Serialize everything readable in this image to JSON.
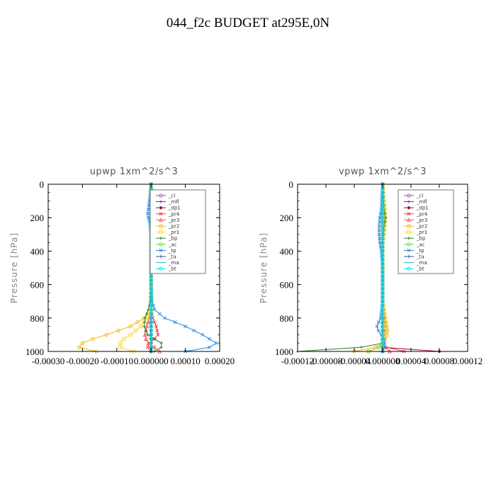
{
  "figure": {
    "title": "044_f2c  BUDGET at295E,0N"
  },
  "legend_colors": {
    "_cl": "#9b59b6",
    "_mfl": "#7b1fa2",
    "_dp1": "#b0003a",
    "_pr4": "#e53935",
    "_pr3": "#ff5252",
    "_pr2": "#ffb300",
    "_pr1": "#fdd835",
    "_bp": "#2e7d32",
    "_ac": "#66dd44",
    "_tp": "#1e88e5",
    "_ta": "#3949ab",
    "_ma": "#26c6da",
    "_bt": "#00e5ee"
  },
  "chart_data": [
    {
      "type": "line",
      "title": "upwp   1xm^2/s^3",
      "xlabel": "",
      "ylabel": "Pressure [hPa]",
      "xlim": [
        -0.0003,
        0.0002
      ],
      "ylim": [
        1000,
        0
      ],
      "xticks": [
        "-0.00030",
        "-0.00020",
        "-0.00010",
        "0.000000",
        "0.00010",
        "0.00020"
      ],
      "yticks": [
        "0",
        "200",
        "400",
        "600",
        "800",
        "1000"
      ],
      "legend": [
        "_cl",
        "_mfl",
        "_dp1",
        "_pr4",
        "_pr3",
        "_pr2",
        "_pr1",
        "_bp",
        "_ac",
        "_tp",
        "_ta",
        "_ma",
        "_bt"
      ],
      "legend_position": "top-right",
      "y": [
        0,
        150,
        175,
        200,
        225,
        300,
        400,
        500,
        600,
        700,
        750,
        800,
        850,
        900,
        925,
        950,
        975,
        1000
      ],
      "series": [
        {
          "name": "_cl",
          "values": [
            0,
            0,
            0,
            0,
            0,
            0,
            0,
            0,
            0,
            0,
            0,
            0,
            0,
            0,
            0,
            0,
            0,
            0
          ]
        },
        {
          "name": "_mfl",
          "values": [
            0,
            0,
            0,
            0,
            0,
            0,
            0,
            0,
            0,
            0,
            0,
            0,
            0,
            0,
            0,
            0,
            0,
            0
          ]
        },
        {
          "name": "_dp1",
          "values": [
            0,
            0,
            0,
            0,
            0,
            0,
            0,
            0,
            0,
            0,
            0,
            0,
            0,
            0,
            0,
            0,
            0,
            0
          ]
        },
        {
          "name": "_pr4",
          "values": [
            0,
            0,
            0,
            0,
            0,
            0,
            0,
            0,
            0,
            0,
            0,
            5e-06,
            1.5e-05,
            2e-05,
            1e-05,
            -5e-06,
            -1e-05,
            0
          ]
        },
        {
          "name": "_pr3",
          "values": [
            0,
            0,
            0,
            0,
            0,
            0,
            0,
            0,
            0,
            0,
            0,
            -5e-06,
            -1.2e-05,
            -1.8e-05,
            -1.5e-05,
            -8e-06,
            1e-05,
            2.5e-05
          ]
        },
        {
          "name": "_pr2",
          "values": [
            0,
            0,
            0,
            0,
            0,
            0,
            0,
            0,
            0,
            0,
            0,
            -2e-05,
            -6e-05,
            -0.00013,
            -0.00017,
            -0.0002,
            -0.00021,
            -0.00016
          ]
        },
        {
          "name": "_pr1",
          "values": [
            0,
            5e-06,
            8e-06,
            6e-06,
            4e-06,
            0,
            0,
            0,
            0,
            0,
            0,
            -1e-05,
            -3e-05,
            -6e-05,
            -8e-05,
            -9e-05,
            -9e-05,
            -5e-05
          ]
        },
        {
          "name": "_bp",
          "values": [
            0,
            5e-06,
            6e-06,
            4e-06,
            3e-06,
            0,
            0,
            0,
            0,
            -3e-06,
            -8e-06,
            -1.8e-05,
            -2e-05,
            -1e-05,
            1e-05,
            3e-05,
            3e-05,
            1e-05
          ]
        },
        {
          "name": "_ac",
          "values": [
            0,
            0,
            0,
            0,
            0,
            0,
            0,
            0,
            0,
            0,
            0,
            0,
            0,
            0,
            0,
            0,
            0,
            0
          ]
        },
        {
          "name": "_tp",
          "values": [
            0,
            -8e-06,
            -1e-05,
            -8e-06,
            -5e-06,
            0,
            0,
            0,
            0,
            3e-06,
            1e-05,
            4e-05,
            0.0001,
            0.00015,
            0.00017,
            0.00019,
            0.00017,
            0.0001
          ]
        },
        {
          "name": "_ta",
          "values": [
            0,
            0,
            0,
            0,
            0,
            0,
            0,
            0,
            0,
            0,
            0,
            0,
            0,
            0,
            0,
            0,
            0,
            0
          ]
        },
        {
          "name": "_ma",
          "values": [
            0,
            0,
            0,
            0,
            0,
            0,
            0,
            0,
            0,
            0,
            0,
            0,
            0,
            0,
            0,
            0,
            0,
            0
          ]
        },
        {
          "name": "_bt",
          "values": [
            0,
            0,
            0,
            0,
            0,
            0,
            0,
            0,
            0,
            0,
            0,
            0,
            0,
            0,
            0,
            0,
            0,
            0
          ]
        }
      ]
    },
    {
      "type": "line",
      "title": "vpwp   1xm^2/s^3",
      "xlabel": "",
      "ylabel": "Pressure [hPa]",
      "xlim": [
        -0.00012,
        0.00012
      ],
      "ylim": [
        1000,
        0
      ],
      "xticks": [
        "-0.00012",
        "-0.00008",
        "-0.00004",
        "0.000000",
        "0.00004",
        "0.00008",
        "0.00012"
      ],
      "yticks": [
        "0",
        "200",
        "400",
        "600",
        "800",
        "1000"
      ],
      "legend": [
        "_cl",
        "_mfl",
        "_dp1",
        "_pr4",
        "_pr3",
        "_pr2",
        "_pr1",
        "_bp",
        "_ac",
        "_tp",
        "_ta",
        "_ma",
        "_bt"
      ],
      "legend_position": "top-right",
      "y": [
        0,
        150,
        200,
        250,
        300,
        350,
        400,
        500,
        600,
        700,
        800,
        850,
        875,
        900,
        925,
        950,
        975,
        1000
      ],
      "series": [
        {
          "name": "_cl",
          "values": [
            0,
            0,
            0,
            0,
            0,
            0,
            0,
            0,
            0,
            0,
            0,
            0,
            0,
            0,
            0,
            0,
            0,
            0
          ]
        },
        {
          "name": "_mfl",
          "values": [
            0,
            0,
            0,
            0,
            0,
            0,
            0,
            0,
            0,
            0,
            0,
            0,
            0,
            0,
            0,
            0,
            0,
            0
          ]
        },
        {
          "name": "_dp1",
          "values": [
            0,
            0,
            0,
            0,
            0,
            0,
            0,
            0,
            0,
            0,
            0,
            0,
            0,
            0,
            0,
            0,
            0,
            8e-05
          ]
        },
        {
          "name": "_pr4",
          "values": [
            0,
            0,
            0,
            0,
            0,
            0,
            0,
            0,
            0,
            0,
            3e-06,
            4e-06,
            3e-06,
            2e-06,
            0,
            0,
            5e-06,
            3e-05
          ]
        },
        {
          "name": "_pr3",
          "values": [
            0,
            0,
            0,
            0,
            0,
            0,
            0,
            0,
            0,
            0,
            0,
            0,
            0,
            0,
            0,
            0,
            4e-06,
            1e-05
          ]
        },
        {
          "name": "_pr2",
          "values": [
            0,
            3e-06,
            4e-06,
            3e-06,
            2e-06,
            0,
            0,
            0,
            0,
            0,
            4e-06,
            6e-06,
            7e-06,
            6e-06,
            4e-06,
            0,
            -1e-05,
            -4e-05
          ]
        },
        {
          "name": "_pr1",
          "values": [
            0,
            2e-06,
            3e-06,
            2e-06,
            1e-06,
            0,
            0,
            0,
            0,
            0,
            2e-06,
            3e-06,
            4e-06,
            3e-06,
            2e-06,
            0,
            -5e-06,
            -2e-05
          ]
        },
        {
          "name": "_bp",
          "values": [
            0,
            2e-06,
            4e-06,
            2e-06,
            1e-06,
            0,
            0,
            0,
            0,
            0,
            0,
            0,
            0,
            0,
            0,
            0,
            -3e-05,
            -0.00012
          ]
        },
        {
          "name": "_ac",
          "values": [
            0,
            0,
            0,
            0,
            0,
            0,
            0,
            0,
            0,
            0,
            0,
            0,
            0,
            0,
            0,
            0,
            -5e-06,
            -2e-05
          ]
        },
        {
          "name": "_tp",
          "values": [
            0,
            -2e-06,
            -4e-06,
            -5e-06,
            -5e-06,
            -4e-06,
            -2e-06,
            0,
            0,
            0,
            -3e-06,
            -8e-06,
            -6e-06,
            -2e-06,
            2e-06,
            3e-06,
            2e-06,
            0
          ]
        },
        {
          "name": "_ta",
          "values": [
            0,
            0,
            0,
            0,
            0,
            0,
            0,
            0,
            0,
            0,
            0,
            0,
            0,
            0,
            0,
            0,
            0,
            0
          ]
        },
        {
          "name": "_ma",
          "values": [
            0,
            0,
            0,
            0,
            0,
            0,
            0,
            0,
            0,
            0,
            0,
            0,
            0,
            0,
            0,
            0,
            0,
            0
          ]
        },
        {
          "name": "_bt",
          "values": [
            0,
            0,
            0,
            0,
            0,
            0,
            0,
            0,
            0,
            0,
            0,
            0,
            0,
            0,
            0,
            0,
            0,
            0
          ]
        }
      ]
    }
  ]
}
